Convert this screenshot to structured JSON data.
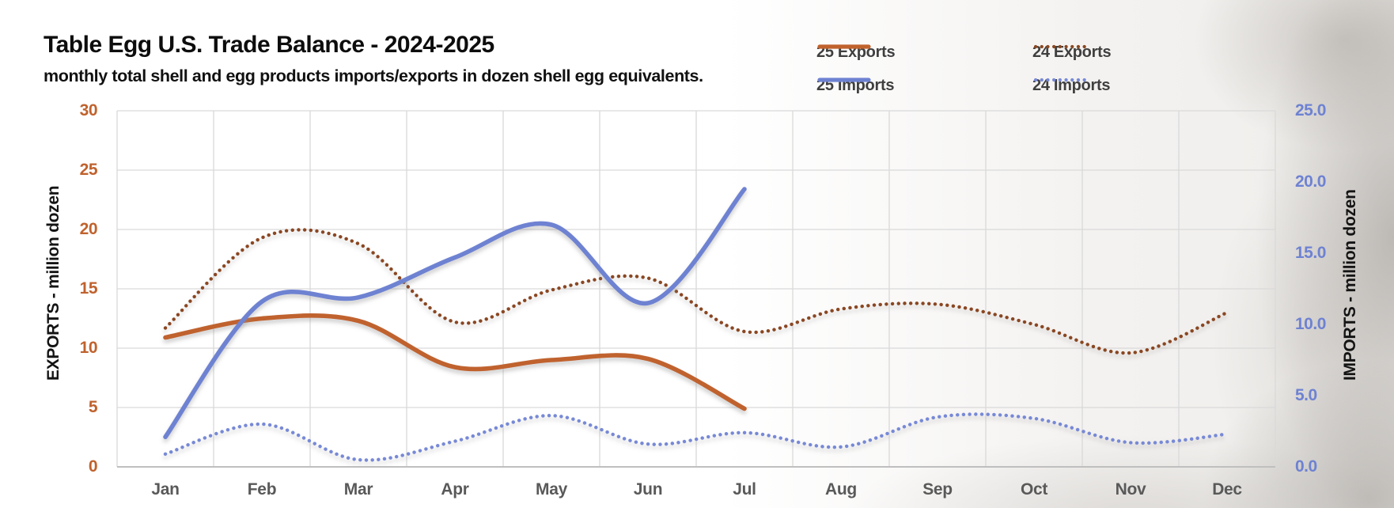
{
  "chart_data": {
    "type": "line",
    "title": "Table Egg U.S. Trade Balance - 2024-2025",
    "subtitle": "monthly total shell and egg products imports/exports in dozen shell egg equivalents.",
    "categories": [
      "Jan",
      "Feb",
      "Mar",
      "Apr",
      "May",
      "Jun",
      "Jul",
      "Aug",
      "Sep",
      "Oct",
      "Nov",
      "Dec"
    ],
    "series": [
      {
        "name": "25 Exports",
        "axis": "left",
        "style": "solid",
        "color": "#C0622D",
        "values": [
          10.9,
          12.5,
          12.3,
          8.4,
          9.0,
          9.1,
          4.9
        ]
      },
      {
        "name": "24 Exports",
        "axis": "left",
        "style": "dotted",
        "color": "#8A4722",
        "values": [
          11.7,
          19.3,
          18.8,
          12.2,
          14.9,
          15.9,
          11.4,
          13.3,
          13.7,
          12.0,
          9.6,
          13.0
        ]
      },
      {
        "name": "25 Imports",
        "axis": "right",
        "style": "solid",
        "color": "#6E82D2",
        "values": [
          2.1,
          11.6,
          11.9,
          14.7,
          17.0,
          11.5,
          19.5
        ]
      },
      {
        "name": "24 Imports",
        "axis": "right",
        "style": "dotted",
        "color": "#7789D6",
        "values": [
          0.9,
          3.0,
          0.5,
          1.8,
          3.6,
          1.6,
          2.4,
          1.4,
          3.5,
          3.4,
          1.7,
          2.3
        ]
      }
    ],
    "left_axis": {
      "label": "EXPORTS - million dozen",
      "range": [
        0,
        30
      ],
      "ticks": [
        "30",
        "25",
        "20",
        "15",
        "10",
        "5",
        "0"
      ],
      "tick_color": "#C0622D"
    },
    "right_axis": {
      "label": "IMPORTS - million dozen",
      "range": [
        0,
        25
      ],
      "ticks": [
        "25.0",
        "20.0",
        "15.0",
        "10.0",
        "5.0",
        "0.0"
      ],
      "tick_color": "#6E82D2"
    },
    "grid": true,
    "gridline_color": "#D9D9D9",
    "smoothing": true,
    "legend_position": "top-right",
    "month_label_color": "#595959"
  }
}
